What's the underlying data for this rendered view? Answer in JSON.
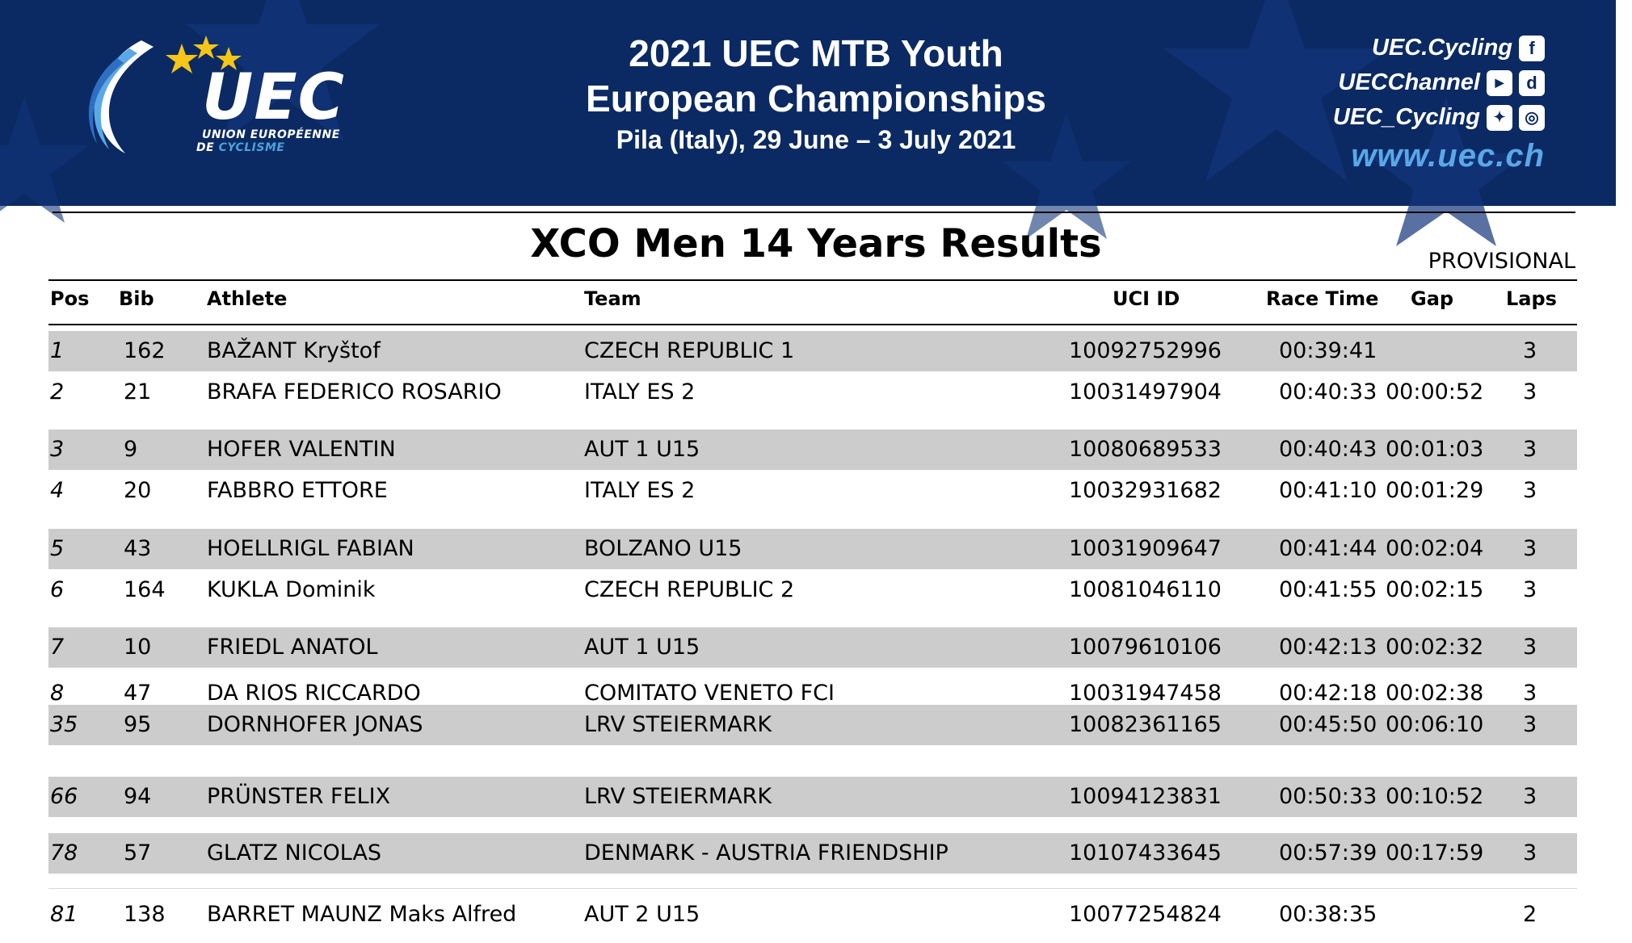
{
  "banner": {
    "logo_text": "UEC",
    "logo_sub_line1": "UNION EUROPÉENNE",
    "logo_sub_line2a": "DE ",
    "logo_sub_line2b": "CYCLISME",
    "title_line1": "2021 UEC MTB Youth",
    "title_line2": "European Championships",
    "title_line3": "Pila (Italy), 29 June – 3 July 2021",
    "social": [
      {
        "handle": "UEC.Cycling",
        "icons": [
          "facebook-icon"
        ]
      },
      {
        "handle": "UECChannel",
        "icons": [
          "youtube-icon",
          "dailymotion-icon"
        ]
      },
      {
        "handle": "UEC_Cycling",
        "icons": [
          "twitter-icon",
          "instagram-icon"
        ]
      }
    ],
    "website": "www.uec.ch",
    "colors": {
      "background": "#0b2a63",
      "accent": "#5aa8e8",
      "star": "#f5c518"
    }
  },
  "doc": {
    "title": "XCO Men 14 Years Results",
    "status": "PROVISIONAL"
  },
  "table": {
    "headers": {
      "pos": "Pos",
      "bib": "Bib",
      "athlete": "Athlete",
      "team": "Team",
      "uci_id": "UCI ID",
      "race_time": "Race Time",
      "gap": "Gap",
      "laps": "Laps"
    },
    "rows": [
      {
        "pos": "1",
        "bib": "162",
        "athlete": "BAŽANT Kryštof",
        "team": "CZECH REPUBLIC 1",
        "uci_id": "10092752996",
        "race_time": "00:39:41",
        "gap": "",
        "laps": "3"
      },
      {
        "pos": "2",
        "bib": "21",
        "athlete": "BRAFA FEDERICO ROSARIO",
        "team": "ITALY ES 2",
        "uci_id": "10031497904",
        "race_time": "00:40:33",
        "gap": "00:00:52",
        "laps": "3"
      },
      {
        "pos": "3",
        "bib": "9",
        "athlete": "HOFER VALENTIN",
        "team": "AUT 1 U15",
        "uci_id": "10080689533",
        "race_time": "00:40:43",
        "gap": "00:01:03",
        "laps": "3"
      },
      {
        "pos": "4",
        "bib": "20",
        "athlete": "FABBRO ETTORE",
        "team": "ITALY ES 2",
        "uci_id": "10032931682",
        "race_time": "00:41:10",
        "gap": "00:01:29",
        "laps": "3"
      },
      {
        "pos": "5",
        "bib": "43",
        "athlete": "HOELLRIGL FABIAN",
        "team": "BOLZANO U15",
        "uci_id": "10031909647",
        "race_time": "00:41:44",
        "gap": "00:02:04",
        "laps": "3"
      },
      {
        "pos": "6",
        "bib": "164",
        "athlete": "KUKLA Dominik",
        "team": "CZECH REPUBLIC 2",
        "uci_id": "10081046110",
        "race_time": "00:41:55",
        "gap": "00:02:15",
        "laps": "3"
      },
      {
        "pos": "7",
        "bib": "10",
        "athlete": "FRIEDL ANATOL",
        "team": "AUT 1 U15",
        "uci_id": "10079610106",
        "race_time": "00:42:13",
        "gap": "00:02:32",
        "laps": "3"
      }
    ],
    "cut_row": {
      "pos": "8",
      "bib": "47",
      "athlete": "DA RIOS RICCARDO",
      "team": "COMITATO VENETO FCI",
      "uci_id": "10031947458",
      "race_time": "00:42:18",
      "gap": "00:02:38",
      "laps": "3"
    },
    "lower_rows": [
      {
        "pos": "35",
        "bib": "95",
        "athlete": "DORNHOFER JONAS",
        "team": "LRV STEIERMARK",
        "uci_id": "10082361165",
        "race_time": "00:45:50",
        "gap": "00:06:10",
        "laps": "3"
      },
      {
        "pos": "66",
        "bib": "94",
        "athlete": "PRÜNSTER FELIX",
        "team": "LRV STEIERMARK",
        "uci_id": "10094123831",
        "race_time": "00:50:33",
        "gap": "00:10:52",
        "laps": "3"
      },
      {
        "pos": "78",
        "bib": "57",
        "athlete": "GLATZ NICOLAS",
        "team": "DENMARK - AUSTRIA FRIENDSHIP",
        "uci_id": "10107433645",
        "race_time": "00:57:39",
        "gap": "00:17:59",
        "laps": "3"
      },
      {
        "pos": "81",
        "bib": "138",
        "athlete": "BARRET MAUNZ Maks Alfred",
        "team": "AUT 2 U15",
        "uci_id": "10077254824",
        "race_time": "00:38:35",
        "gap": "",
        "laps": "2"
      }
    ]
  }
}
